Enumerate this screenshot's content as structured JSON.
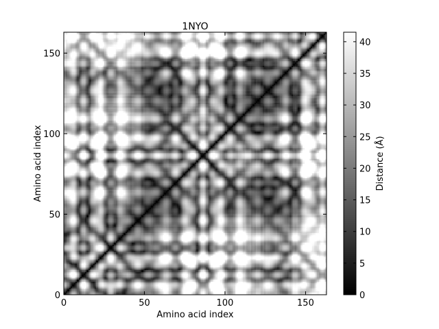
{
  "chart_data": {
    "type": "heatmap",
    "title": "1NYO",
    "xlabel": "Amino acid index",
    "ylabel": "Amino acid index",
    "x_range": [
      0,
      163
    ],
    "y_range": [
      0,
      163
    ],
    "x_ticks": [
      0,
      50,
      100,
      150
    ],
    "y_ticks": [
      0,
      50,
      100,
      150
    ],
    "colormap": "gray",
    "colorbar": {
      "label": "Distance (Å)",
      "range": [
        0,
        41.5
      ],
      "ticks": [
        0,
        5,
        10,
        15,
        20,
        25,
        30,
        35,
        40
      ]
    },
    "diagonal_value": 0,
    "description_of_matrix": "symmetric pairwise residue distance matrix"
  }
}
